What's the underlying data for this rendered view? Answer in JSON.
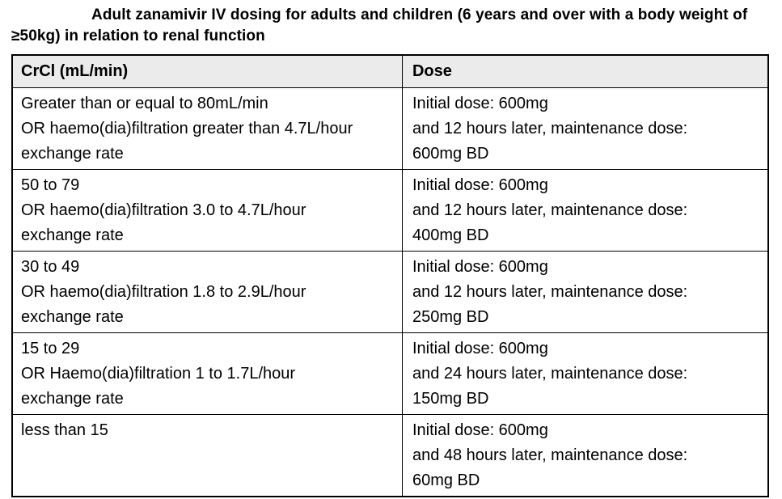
{
  "title": "Adult zanamivir IV dosing for adults and children (6 years and over with a body weight of ≥50kg) in relation to renal function",
  "table": {
    "headers": {
      "crcl": "CrCl (mL/min)",
      "dose": "Dose"
    },
    "rows": [
      {
        "crcl_lines": [
          "Greater than or equal to 80mL/min",
          "OR haemo(dia)filtration greater than 4.7L/hour",
          "exchange rate"
        ],
        "dose_lines": [
          "Initial dose: 600mg",
          "and 12 hours later, maintenance dose:",
          "600mg BD"
        ]
      },
      {
        "crcl_lines": [
          "50 to 79",
          "OR haemo(dia)filtration 3.0 to 4.7L/hour",
          "exchange rate"
        ],
        "dose_lines": [
          "Initial dose: 600mg",
          "and 12 hours later, maintenance dose:",
          "400mg BD"
        ]
      },
      {
        "crcl_lines": [
          "30 to 49",
          "OR haemo(dia)filtration 1.8 to 2.9L/hour",
          "exchange rate"
        ],
        "dose_lines": [
          "Initial dose: 600mg",
          "and 12 hours later, maintenance dose:",
          "250mg BD"
        ]
      },
      {
        "crcl_lines": [
          "15 to 29",
          "OR Haemo(dia)filtration 1 to 1.7L/hour",
          "exchange rate"
        ],
        "dose_lines": [
          "Initial dose: 600mg",
          "and 24 hours later, maintenance dose:",
          "150mg BD"
        ]
      },
      {
        "crcl_lines": [
          "less than 15"
        ],
        "dose_lines": [
          "Initial dose: 600mg",
          "and 48 hours later, maintenance dose:",
          "60mg BD"
        ]
      }
    ]
  },
  "colors": {
    "header_bg": "#ebebeb",
    "border": "#000000",
    "text": "#000000",
    "background": "#ffffff"
  }
}
